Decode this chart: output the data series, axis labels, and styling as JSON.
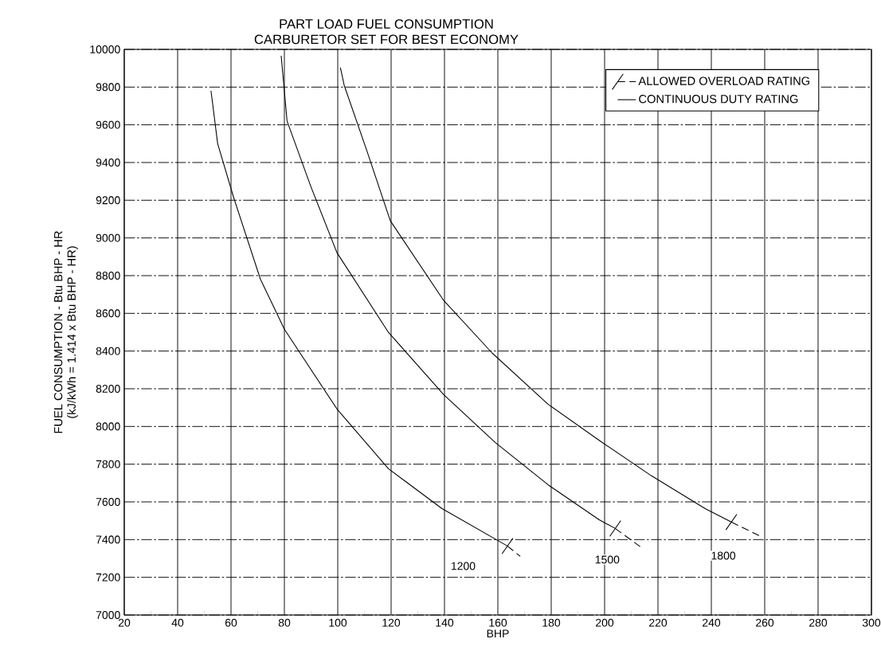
{
  "chart_data": {
    "type": "line",
    "title": "PART LOAD FUEL CONSUMPTION",
    "subtitle": "CARBURETOR SET FOR BEST ECONOMY",
    "xlabel": "BHP",
    "ylabel": "FUEL CONSUMPTION - Btu BHP - HR",
    "annotations": [
      "(kJ/kWh = 1.414 x Btu BHP - HR)",
      {
        "text": "1200",
        "x": 147,
        "y": 7260
      },
      {
        "text": "1500",
        "x": 201,
        "y": 7294
      },
      {
        "text": "1800",
        "x": 244.5,
        "y": 7315
      }
    ],
    "series": [
      {
        "name": "ALLOWED OVERLOAD RATING",
        "color": "#000000",
        "line_style": "dashed",
        "x": [
          163.6,
          168.4
        ],
        "values": [
          7366,
          7311
        ]
      },
      {
        "name": "CONTINUOUS DUTY RATING",
        "color": "#000000",
        "line_style": "solid",
        "x": [
          52.5,
          55,
          61,
          71,
          80,
          99.7,
          119,
          139,
          163.6
        ],
        "values": [
          9780,
          9500,
          9214,
          8782,
          8516,
          8093,
          7776,
          7565,
          7366
        ]
      },
      {
        "color": "#000000",
        "line_style": "solid",
        "x": [
          78.8,
          81,
          89.8,
          99.7,
          119,
          139.7,
          159,
          178.8,
          198,
          204
        ],
        "values": [
          9966,
          9620,
          9277,
          8922,
          8499,
          8169,
          7915,
          7691,
          7505,
          7459
        ]
      },
      {
        "color": "#000000",
        "line_style": "dashed",
        "x": [
          204,
          213.4
        ],
        "values": [
          7459,
          7362
        ]
      },
      {
        "color": "#000000",
        "line_style": "solid",
        "x": [
          101,
          102.4,
          110.7,
          119.7,
          139.7,
          157.9,
          178.8,
          198.2,
          217.6,
          237.6,
          247.5
        ],
        "values": [
          9903,
          9810,
          9471,
          9091,
          8668,
          8389,
          8118,
          7924,
          7738,
          7565,
          7493
        ]
      },
      {
        "color": "#000000",
        "line_style": "dashed",
        "x": [
          247.5,
          257.9
        ],
        "values": [
          7493,
          7421
        ]
      }
    ],
    "xlim": [
      20,
      300
    ],
    "xticks": [
      20,
      40,
      60,
      80,
      100,
      120,
      140,
      160,
      180,
      200,
      220,
      240,
      260,
      280,
      300
    ],
    "ylim": [
      7000,
      10000
    ],
    "yticks": [
      7000,
      7200,
      7400,
      7600,
      7800,
      8000,
      8200,
      8400,
      8600,
      8800,
      9000,
      9200,
      9400,
      9600,
      9800,
      10000
    ],
    "grid": true,
    "legend": "top right"
  }
}
